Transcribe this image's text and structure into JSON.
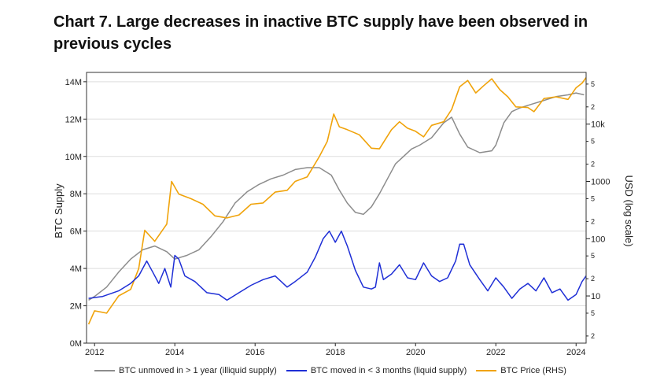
{
  "chart_data": {
    "type": "line",
    "title": "Chart 7. Large decreases in inactive BTC supply have been observed in previous cycles",
    "ylabel": "BTC Supply",
    "y2label": "USD (log scale)",
    "x_ticks": [
      "2012",
      "2014",
      "2016",
      "2018",
      "2020",
      "2022",
      "2024"
    ],
    "y_ticks": [
      "0M",
      "2M",
      "4M",
      "6M",
      "8M",
      "10M",
      "12M",
      "14M"
    ],
    "y_range_millions": [
      0,
      14.5
    ],
    "y2_ticks_major": [
      "10",
      "100",
      "1000",
      "10k"
    ],
    "y2_ticks_minor": [
      "2",
      "5"
    ],
    "y2_scale": "log",
    "y2_range_usd": [
      1.5,
      80000
    ],
    "x_range": [
      2011.8,
      2024.25
    ],
    "grid": "horizontal",
    "legend_position": "bottom",
    "series": [
      {
        "name": "BTC unmoved in > 1 year (illiquid supply)",
        "color": "#8c8c8c",
        "axis": "left",
        "points": [
          [
            2011.85,
            2.3
          ],
          [
            2012.0,
            2.5
          ],
          [
            2012.3,
            3.0
          ],
          [
            2012.6,
            3.8
          ],
          [
            2012.9,
            4.5
          ],
          [
            2013.2,
            5.0
          ],
          [
            2013.5,
            5.2
          ],
          [
            2013.8,
            4.9
          ],
          [
            2014.0,
            4.5
          ],
          [
            2014.3,
            4.7
          ],
          [
            2014.6,
            5.0
          ],
          [
            2014.9,
            5.7
          ],
          [
            2015.2,
            6.5
          ],
          [
            2015.5,
            7.5
          ],
          [
            2015.8,
            8.1
          ],
          [
            2016.1,
            8.5
          ],
          [
            2016.4,
            8.8
          ],
          [
            2016.7,
            9.0
          ],
          [
            2017.0,
            9.3
          ],
          [
            2017.3,
            9.4
          ],
          [
            2017.6,
            9.4
          ],
          [
            2017.9,
            9.0
          ],
          [
            2018.1,
            8.2
          ],
          [
            2018.3,
            7.5
          ],
          [
            2018.5,
            7.0
          ],
          [
            2018.7,
            6.9
          ],
          [
            2018.9,
            7.3
          ],
          [
            2019.1,
            8.0
          ],
          [
            2019.3,
            8.8
          ],
          [
            2019.5,
            9.6
          ],
          [
            2019.7,
            10.0
          ],
          [
            2019.9,
            10.4
          ],
          [
            2020.1,
            10.6
          ],
          [
            2020.4,
            11.0
          ],
          [
            2020.7,
            11.8
          ],
          [
            2020.9,
            12.1
          ],
          [
            2021.1,
            11.2
          ],
          [
            2021.3,
            10.5
          ],
          [
            2021.6,
            10.2
          ],
          [
            2021.9,
            10.3
          ],
          [
            2022.0,
            10.6
          ],
          [
            2022.2,
            11.8
          ],
          [
            2022.4,
            12.4
          ],
          [
            2022.6,
            12.6
          ],
          [
            2022.9,
            12.8
          ],
          [
            2023.2,
            13.0
          ],
          [
            2023.5,
            13.2
          ],
          [
            2023.8,
            13.3
          ],
          [
            2024.0,
            13.4
          ],
          [
            2024.2,
            13.3
          ]
        ]
      },
      {
        "name": "BTC moved in < 3 months (liquid supply)",
        "color": "#1f2fd6",
        "axis": "left",
        "points": [
          [
            2011.85,
            2.4
          ],
          [
            2012.2,
            2.5
          ],
          [
            2012.6,
            2.8
          ],
          [
            2012.9,
            3.2
          ],
          [
            2013.1,
            3.6
          ],
          [
            2013.3,
            4.4
          ],
          [
            2013.45,
            3.8
          ],
          [
            2013.6,
            3.2
          ],
          [
            2013.75,
            4.0
          ],
          [
            2013.9,
            3.0
          ],
          [
            2014.0,
            4.7
          ],
          [
            2014.1,
            4.5
          ],
          [
            2014.25,
            3.6
          ],
          [
            2014.5,
            3.3
          ],
          [
            2014.8,
            2.7
          ],
          [
            2015.1,
            2.6
          ],
          [
            2015.3,
            2.3
          ],
          [
            2015.6,
            2.7
          ],
          [
            2015.9,
            3.1
          ],
          [
            2016.2,
            3.4
          ],
          [
            2016.5,
            3.6
          ],
          [
            2016.8,
            3.0
          ],
          [
            2017.0,
            3.3
          ],
          [
            2017.3,
            3.8
          ],
          [
            2017.5,
            4.6
          ],
          [
            2017.7,
            5.6
          ],
          [
            2017.85,
            6.0
          ],
          [
            2018.0,
            5.4
          ],
          [
            2018.15,
            6.0
          ],
          [
            2018.3,
            5.2
          ],
          [
            2018.5,
            3.9
          ],
          [
            2018.7,
            3.0
          ],
          [
            2018.9,
            2.9
          ],
          [
            2019.0,
            3.0
          ],
          [
            2019.1,
            4.3
          ],
          [
            2019.2,
            3.4
          ],
          [
            2019.4,
            3.7
          ],
          [
            2019.6,
            4.2
          ],
          [
            2019.8,
            3.5
          ],
          [
            2020.0,
            3.4
          ],
          [
            2020.2,
            4.3
          ],
          [
            2020.4,
            3.6
          ],
          [
            2020.6,
            3.3
          ],
          [
            2020.8,
            3.5
          ],
          [
            2021.0,
            4.4
          ],
          [
            2021.1,
            5.3
          ],
          [
            2021.2,
            5.3
          ],
          [
            2021.35,
            4.2
          ],
          [
            2021.6,
            3.4
          ],
          [
            2021.8,
            2.8
          ],
          [
            2022.0,
            3.5
          ],
          [
            2022.2,
            3.0
          ],
          [
            2022.4,
            2.4
          ],
          [
            2022.6,
            2.9
          ],
          [
            2022.8,
            3.2
          ],
          [
            2023.0,
            2.8
          ],
          [
            2023.2,
            3.5
          ],
          [
            2023.4,
            2.7
          ],
          [
            2023.6,
            2.9
          ],
          [
            2023.8,
            2.3
          ],
          [
            2024.0,
            2.6
          ],
          [
            2024.15,
            3.3
          ],
          [
            2024.25,
            3.6
          ]
        ]
      },
      {
        "name": "BTC Price (RHS)",
        "color": "#f0a30a",
        "axis": "right",
        "points": [
          [
            2011.85,
            3.2
          ],
          [
            2012.0,
            5.5
          ],
          [
            2012.3,
            5.0
          ],
          [
            2012.6,
            10
          ],
          [
            2012.9,
            13
          ],
          [
            2013.1,
            30
          ],
          [
            2013.25,
            140
          ],
          [
            2013.5,
            90
          ],
          [
            2013.8,
            180
          ],
          [
            2013.92,
            1000
          ],
          [
            2014.1,
            600
          ],
          [
            2014.4,
            500
          ],
          [
            2014.7,
            400
          ],
          [
            2015.0,
            250
          ],
          [
            2015.3,
            230
          ],
          [
            2015.6,
            260
          ],
          [
            2015.9,
            400
          ],
          [
            2016.2,
            420
          ],
          [
            2016.5,
            650
          ],
          [
            2016.8,
            700
          ],
          [
            2017.0,
            1000
          ],
          [
            2017.3,
            1200
          ],
          [
            2017.6,
            2700
          ],
          [
            2017.8,
            5000
          ],
          [
            2017.96,
            15000
          ],
          [
            2018.1,
            9000
          ],
          [
            2018.3,
            8000
          ],
          [
            2018.6,
            6500
          ],
          [
            2018.9,
            3800
          ],
          [
            2019.1,
            3700
          ],
          [
            2019.4,
            8000
          ],
          [
            2019.6,
            11000
          ],
          [
            2019.8,
            8500
          ],
          [
            2020.0,
            7500
          ],
          [
            2020.2,
            6000
          ],
          [
            2020.4,
            9500
          ],
          [
            2020.7,
            11000
          ],
          [
            2020.9,
            18000
          ],
          [
            2021.1,
            45000
          ],
          [
            2021.3,
            58000
          ],
          [
            2021.5,
            35000
          ],
          [
            2021.7,
            47000
          ],
          [
            2021.9,
            62000
          ],
          [
            2022.1,
            40000
          ],
          [
            2022.3,
            30000
          ],
          [
            2022.5,
            20000
          ],
          [
            2022.8,
            19500
          ],
          [
            2022.95,
            16500
          ],
          [
            2023.2,
            28000
          ],
          [
            2023.5,
            30000
          ],
          [
            2023.8,
            27000
          ],
          [
            2024.0,
            43000
          ],
          [
            2024.15,
            52000
          ],
          [
            2024.25,
            65000
          ]
        ]
      }
    ]
  }
}
